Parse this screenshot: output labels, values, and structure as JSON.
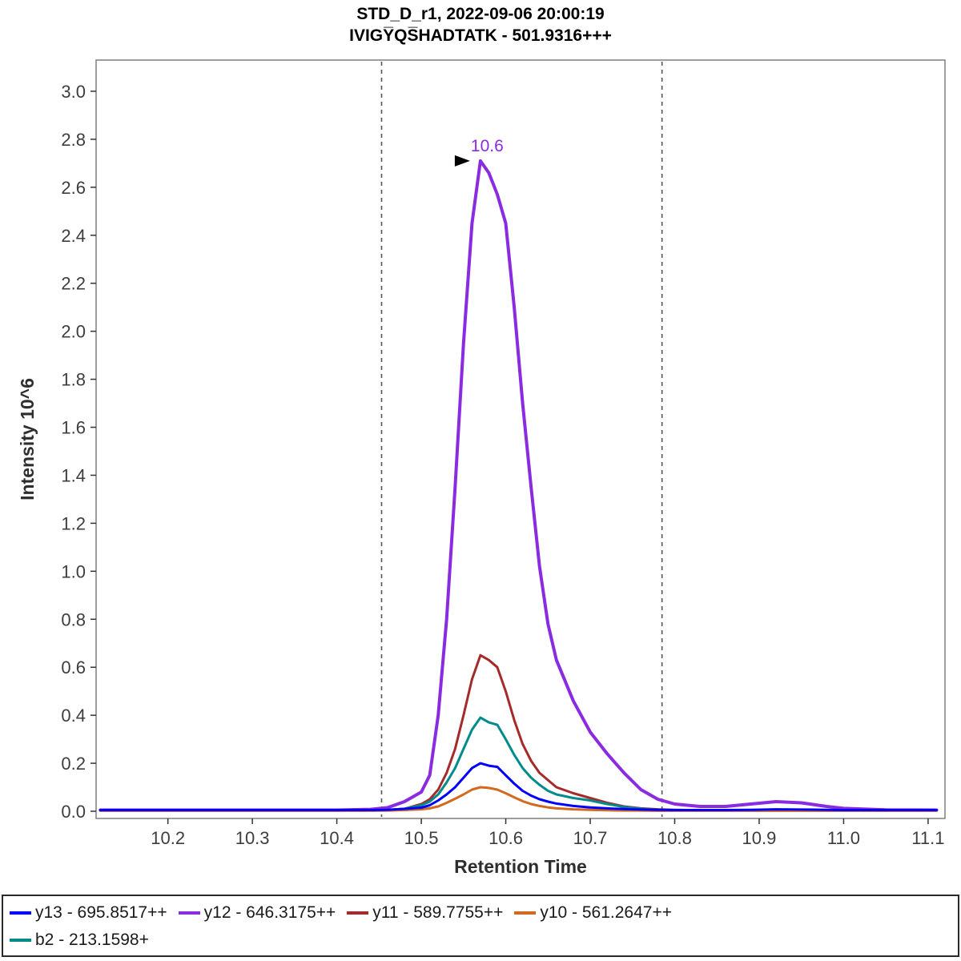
{
  "title": {
    "line1": "STD_D_r1, 2022-09-06 20:00:19",
    "line2": "IVIGY̅QS̅HADTATK - 501.9316+++"
  },
  "axes": {
    "x": {
      "label": "Retention Time",
      "min": 10.115,
      "max": 11.12,
      "tick_values": [
        10.2,
        10.3,
        10.4,
        10.5,
        10.6,
        10.7,
        10.8,
        10.9,
        11.0,
        11.1
      ],
      "tick_labels": [
        "10.2",
        "10.3",
        "10.4",
        "10.5",
        "10.6",
        "10.7",
        "10.8",
        "10.9",
        "11.0",
        "11.1"
      ]
    },
    "y": {
      "label": "Intensity 10^6",
      "min": -0.03,
      "max": 3.13,
      "tick_values": [
        0.0,
        0.2,
        0.4,
        0.6,
        0.8,
        1.0,
        1.2,
        1.4,
        1.6,
        1.8,
        2.0,
        2.2,
        2.4,
        2.6,
        2.8,
        3.0
      ],
      "tick_labels": [
        "0.0",
        "0.2",
        "0.4",
        "0.6",
        "0.8",
        "1.0",
        "1.2",
        "1.4",
        "1.6",
        "1.8",
        "2.0",
        "2.2",
        "2.4",
        "2.6",
        "2.8",
        "3.0"
      ]
    }
  },
  "chart_data": {
    "type": "line",
    "title": "STD_D_r1, 2022-09-06 20:00:19 / IVIGYQSHADTATK - 501.9316+++",
    "xlabel": "Retention Time",
    "ylabel": "Intensity 10^6",
    "xlim": [
      10.115,
      11.12
    ],
    "ylim": [
      -0.03,
      3.13
    ],
    "grid": false,
    "legend_position": "bottom",
    "integration_boundaries": [
      10.453,
      10.785
    ],
    "peak_annotation": {
      "text": "10.6",
      "x": 10.57,
      "y": 2.71,
      "color": "#8A2BE2"
    },
    "x": [
      10.12,
      10.2,
      10.3,
      10.4,
      10.44,
      10.46,
      10.48,
      10.5,
      10.51,
      10.52,
      10.53,
      10.54,
      10.55,
      10.56,
      10.57,
      10.58,
      10.59,
      10.6,
      10.61,
      10.62,
      10.63,
      10.64,
      10.65,
      10.66,
      10.68,
      10.7,
      10.72,
      10.74,
      10.76,
      10.78,
      10.8,
      10.83,
      10.86,
      10.89,
      10.92,
      10.95,
      10.98,
      11.0,
      11.05,
      11.11
    ],
    "series": [
      {
        "name": "y12 - 646.3175++",
        "color": "#8A2BE2",
        "width": 4,
        "values": [
          0.005,
          0.005,
          0.005,
          0.005,
          0.008,
          0.015,
          0.04,
          0.08,
          0.15,
          0.4,
          0.8,
          1.35,
          1.95,
          2.45,
          2.71,
          2.66,
          2.57,
          2.45,
          2.1,
          1.7,
          1.35,
          1.02,
          0.78,
          0.63,
          0.46,
          0.33,
          0.24,
          0.16,
          0.09,
          0.05,
          0.03,
          0.02,
          0.02,
          0.03,
          0.04,
          0.035,
          0.02,
          0.012,
          0.006,
          0.005
        ]
      },
      {
        "name": "y11 - 589.7755++",
        "color": "#A52A2A",
        "width": 3,
        "values": [
          0.003,
          0.003,
          0.003,
          0.003,
          0.004,
          0.006,
          0.01,
          0.03,
          0.05,
          0.09,
          0.16,
          0.26,
          0.4,
          0.55,
          0.65,
          0.63,
          0.6,
          0.5,
          0.38,
          0.28,
          0.21,
          0.16,
          0.13,
          0.1,
          0.075,
          0.055,
          0.035,
          0.02,
          0.012,
          0.008,
          0.006,
          0.004,
          0.004,
          0.005,
          0.006,
          0.005,
          0.004,
          0.004,
          0.003,
          0.003
        ]
      },
      {
        "name": "b2 - 213.1598+",
        "color": "#008B8B",
        "width": 3,
        "values": [
          0.003,
          0.003,
          0.003,
          0.003,
          0.004,
          0.005,
          0.01,
          0.025,
          0.04,
          0.07,
          0.12,
          0.18,
          0.26,
          0.34,
          0.39,
          0.37,
          0.36,
          0.3,
          0.235,
          0.18,
          0.14,
          0.11,
          0.085,
          0.07,
          0.055,
          0.045,
          0.03,
          0.018,
          0.01,
          0.006,
          0.005,
          0.004,
          0.004,
          0.004,
          0.005,
          0.004,
          0.004,
          0.003,
          0.003,
          0.003
        ]
      },
      {
        "name": "y10 - 561.2647++",
        "color": "#D2691E",
        "width": 3,
        "values": [
          0.002,
          0.002,
          0.002,
          0.002,
          0.002,
          0.003,
          0.005,
          0.008,
          0.012,
          0.02,
          0.035,
          0.052,
          0.07,
          0.09,
          0.1,
          0.097,
          0.09,
          0.075,
          0.058,
          0.042,
          0.03,
          0.022,
          0.016,
          0.012,
          0.008,
          0.006,
          0.004,
          0.003,
          0.003,
          0.002,
          0.002,
          0.002,
          0.002,
          0.002,
          0.002,
          0.002,
          0.002,
          0.002,
          0.002,
          0.002
        ]
      },
      {
        "name": "y13 - 695.8517++",
        "color": "#0000FF",
        "width": 3,
        "values": [
          0.005,
          0.005,
          0.005,
          0.005,
          0.005,
          0.006,
          0.01,
          0.015,
          0.025,
          0.045,
          0.07,
          0.1,
          0.14,
          0.18,
          0.2,
          0.19,
          0.185,
          0.15,
          0.115,
          0.085,
          0.065,
          0.05,
          0.04,
          0.032,
          0.022,
          0.016,
          0.012,
          0.009,
          0.007,
          0.006,
          0.005,
          0.005,
          0.005,
          0.006,
          0.008,
          0.007,
          0.006,
          0.005,
          0.005,
          0.005
        ]
      }
    ]
  },
  "legend": {
    "items": [
      {
        "label": "y13 - 695.8517++",
        "color": "#0000FF"
      },
      {
        "label": "y12 - 646.3175++",
        "color": "#8A2BE2"
      },
      {
        "label": "y11 - 589.7755++",
        "color": "#A52A2A"
      },
      {
        "label": "y10 - 561.2647++",
        "color": "#D2691E"
      },
      {
        "label": "b2 - 213.1598+",
        "color": "#008B8B"
      }
    ]
  }
}
